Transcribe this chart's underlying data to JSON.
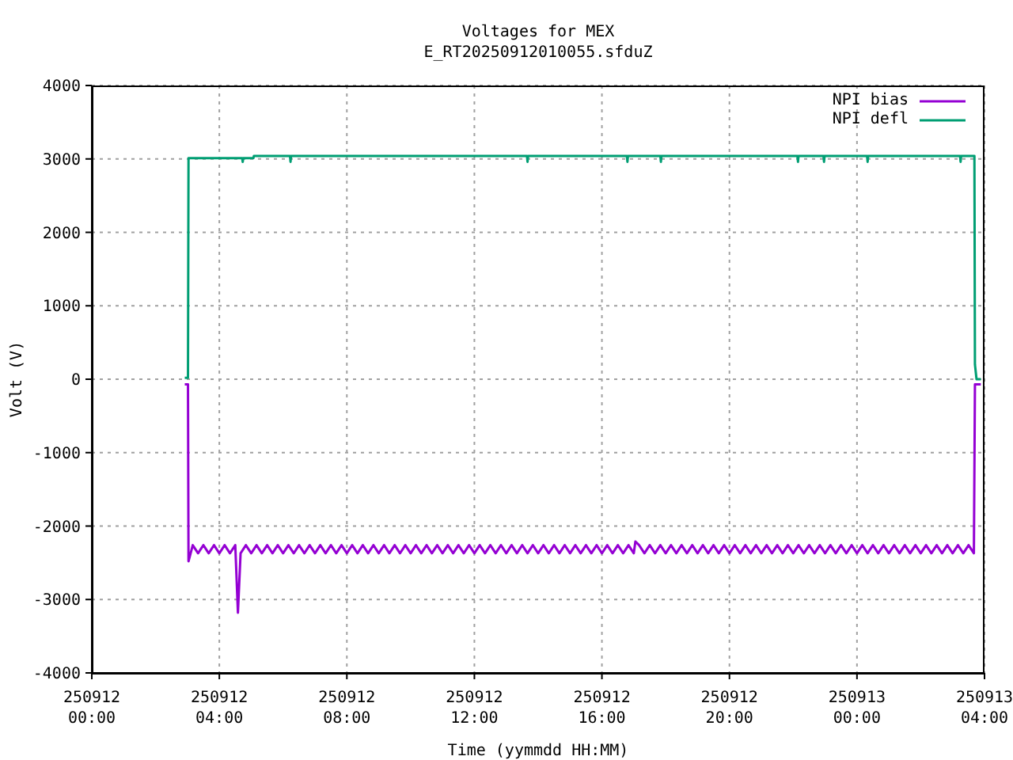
{
  "chart_data": {
    "type": "line",
    "title": "Voltages for MEX",
    "subtitle": "E_RT20250912010055.sfduZ",
    "xlabel": "Time (yymmdd HH:MM)",
    "ylabel": "Volt (V)",
    "xlim": [
      "2025-09-12T00:00",
      "2025-09-13T04:00"
    ],
    "xticks": [
      {
        "value": "2025-09-12T00:00",
        "label": "250912\n00:00"
      },
      {
        "value": "2025-09-12T04:00",
        "label": "250912\n04:00"
      },
      {
        "value": "2025-09-12T08:00",
        "label": "250912\n08:00"
      },
      {
        "value": "2025-09-12T12:00",
        "label": "250912\n12:00"
      },
      {
        "value": "2025-09-12T16:00",
        "label": "250912\n16:00"
      },
      {
        "value": "2025-09-12T20:00",
        "label": "250912\n20:00"
      },
      {
        "value": "2025-09-13T00:00",
        "label": "250913\n00:00"
      },
      {
        "value": "2025-09-13T04:00",
        "label": "250913\n04:00"
      }
    ],
    "ylim": [
      -4000,
      4000
    ],
    "yticks": [
      -4000,
      -3000,
      -2000,
      -1000,
      0,
      1000,
      2000,
      3000,
      4000
    ],
    "grid": true,
    "legend": "top right",
    "series": [
      {
        "name": "NPI bias",
        "color": "#9400d3",
        "x": [
          "2025-09-12T02:55",
          "2025-09-12T03:01",
          "2025-09-12T03:02",
          "2025-09-12T03:10",
          "2025-09-12T03:20",
          "2025-09-12T03:30",
          "2025-09-12T03:40",
          "2025-09-12T03:50",
          "2025-09-12T04:00",
          "2025-09-12T04:10",
          "2025-09-12T04:20",
          "2025-09-12T04:30",
          "2025-09-12T04:35",
          "2025-09-12T04:40",
          "2025-09-12T04:50",
          "2025-09-12T05:00",
          "2025-09-12T05:10",
          "2025-09-12T05:20",
          "2025-09-12T05:30",
          "2025-09-12T05:40",
          "2025-09-12T05:50",
          "2025-09-12T06:00",
          "2025-09-12T06:10",
          "2025-09-12T06:20",
          "2025-09-12T06:30",
          "2025-09-12T06:40",
          "2025-09-12T06:50",
          "2025-09-12T07:00",
          "2025-09-12T07:10",
          "2025-09-12T07:20",
          "2025-09-12T07:30",
          "2025-09-12T07:40",
          "2025-09-12T07:50",
          "2025-09-12T08:00",
          "2025-09-12T08:10",
          "2025-09-12T08:20",
          "2025-09-12T08:30",
          "2025-09-12T08:40",
          "2025-09-12T08:50",
          "2025-09-12T09:00",
          "2025-09-12T09:10",
          "2025-09-12T09:20",
          "2025-09-12T09:30",
          "2025-09-12T09:40",
          "2025-09-12T09:50",
          "2025-09-12T10:00",
          "2025-09-12T10:10",
          "2025-09-12T10:20",
          "2025-09-12T10:30",
          "2025-09-12T10:40",
          "2025-09-12T10:50",
          "2025-09-12T11:00",
          "2025-09-12T11:10",
          "2025-09-12T11:20",
          "2025-09-12T11:30",
          "2025-09-12T11:40",
          "2025-09-12T11:50",
          "2025-09-12T12:00",
          "2025-09-12T12:10",
          "2025-09-12T12:20",
          "2025-09-12T12:30",
          "2025-09-12T12:40",
          "2025-09-12T12:50",
          "2025-09-12T13:00",
          "2025-09-12T13:10",
          "2025-09-12T13:20",
          "2025-09-12T13:30",
          "2025-09-12T13:40",
          "2025-09-12T13:50",
          "2025-09-12T14:00",
          "2025-09-12T14:10",
          "2025-09-12T14:20",
          "2025-09-12T14:30",
          "2025-09-12T14:40",
          "2025-09-12T14:50",
          "2025-09-12T15:00",
          "2025-09-12T15:10",
          "2025-09-12T15:20",
          "2025-09-12T15:30",
          "2025-09-12T15:40",
          "2025-09-12T15:50",
          "2025-09-12T16:00",
          "2025-09-12T16:10",
          "2025-09-12T16:20",
          "2025-09-12T16:30",
          "2025-09-12T16:40",
          "2025-09-12T16:50",
          "2025-09-12T17:00",
          "2025-09-12T17:03",
          "2025-09-12T17:10",
          "2025-09-12T17:20",
          "2025-09-12T17:30",
          "2025-09-12T17:40",
          "2025-09-12T17:50",
          "2025-09-12T18:00",
          "2025-09-12T18:10",
          "2025-09-12T18:20",
          "2025-09-12T18:30",
          "2025-09-12T18:40",
          "2025-09-12T18:50",
          "2025-09-12T19:00",
          "2025-09-12T19:10",
          "2025-09-12T19:20",
          "2025-09-12T19:30",
          "2025-09-12T19:40",
          "2025-09-12T19:50",
          "2025-09-12T20:00",
          "2025-09-12T20:10",
          "2025-09-12T20:20",
          "2025-09-12T20:30",
          "2025-09-12T20:40",
          "2025-09-12T20:50",
          "2025-09-12T21:00",
          "2025-09-12T21:10",
          "2025-09-12T21:20",
          "2025-09-12T21:30",
          "2025-09-12T21:40",
          "2025-09-12T21:50",
          "2025-09-12T22:00",
          "2025-09-12T22:10",
          "2025-09-12T22:20",
          "2025-09-12T22:30",
          "2025-09-12T22:40",
          "2025-09-12T22:50",
          "2025-09-12T23:00",
          "2025-09-12T23:10",
          "2025-09-12T23:20",
          "2025-09-12T23:30",
          "2025-09-12T23:40",
          "2025-09-12T23:50",
          "2025-09-13T00:00",
          "2025-09-13T00:10",
          "2025-09-13T00:20",
          "2025-09-13T00:30",
          "2025-09-13T00:40",
          "2025-09-13T00:50",
          "2025-09-13T01:00",
          "2025-09-13T01:10",
          "2025-09-13T01:20",
          "2025-09-13T01:30",
          "2025-09-13T01:40",
          "2025-09-13T01:50",
          "2025-09-13T02:00",
          "2025-09-13T02:10",
          "2025-09-13T02:20",
          "2025-09-13T02:30",
          "2025-09-13T02:40",
          "2025-09-13T02:50",
          "2025-09-13T03:00",
          "2025-09-13T03:10",
          "2025-09-13T03:20",
          "2025-09-13T03:30",
          "2025-09-13T03:40",
          "2025-09-13T03:42",
          "2025-09-13T03:53"
        ],
        "values": [
          -70,
          -70,
          -2480,
          -2260,
          -2370,
          -2260,
          -2370,
          -2260,
          -2370,
          -2260,
          -2370,
          -2260,
          -3180,
          -2370,
          -2260,
          -2370,
          -2260,
          -2370,
          -2260,
          -2370,
          -2260,
          -2370,
          -2260,
          -2370,
          -2260,
          -2370,
          -2260,
          -2370,
          -2260,
          -2370,
          -2260,
          -2370,
          -2260,
          -2370,
          -2260,
          -2370,
          -2260,
          -2370,
          -2260,
          -2370,
          -2260,
          -2370,
          -2260,
          -2370,
          -2260,
          -2370,
          -2260,
          -2370,
          -2260,
          -2370,
          -2260,
          -2370,
          -2260,
          -2370,
          -2260,
          -2370,
          -2260,
          -2370,
          -2260,
          -2370,
          -2260,
          -2370,
          -2260,
          -2370,
          -2260,
          -2370,
          -2260,
          -2370,
          -2260,
          -2370,
          -2260,
          -2370,
          -2260,
          -2370,
          -2260,
          -2370,
          -2260,
          -2370,
          -2260,
          -2370,
          -2260,
          -2370,
          -2260,
          -2370,
          -2260,
          -2370,
          -2260,
          -2370,
          -2210,
          -2260,
          -2370,
          -2260,
          -2370,
          -2260,
          -2370,
          -2260,
          -2370,
          -2260,
          -2370,
          -2260,
          -2370,
          -2260,
          -2370,
          -2260,
          -2370,
          -2260,
          -2370,
          -2260,
          -2370,
          -2260,
          -2370,
          -2260,
          -2370,
          -2260,
          -2370,
          -2260,
          -2370,
          -2260,
          -2370,
          -2260,
          -2370,
          -2260,
          -2370,
          -2260,
          -2370,
          -2260,
          -2370,
          -2260,
          -2370,
          -2260,
          -2370,
          -2260,
          -2370,
          -2260,
          -2370,
          -2260,
          -2370,
          -2260,
          -2370,
          -2260,
          -2370,
          -2260,
          -2370,
          -2260,
          -2370,
          -2260,
          -2370,
          -2260,
          -2370,
          -2260,
          -2370,
          -2260,
          -2370,
          -70,
          -70
        ]
      },
      {
        "name": "NPI defl",
        "color": "#009e73",
        "x": [
          "2025-09-12T02:55",
          "2025-09-12T03:01",
          "2025-09-12T03:02",
          "2025-09-12T04:43",
          "2025-09-12T04:44",
          "2025-09-12T04:45",
          "2025-09-12T05:04",
          "2025-09-12T05:05",
          "2025-09-12T06:13",
          "2025-09-12T06:14",
          "2025-09-12T06:15",
          "2025-09-12T13:39",
          "2025-09-12T13:40",
          "2025-09-12T13:41",
          "2025-09-12T16:47",
          "2025-09-12T16:48",
          "2025-09-12T16:49",
          "2025-09-12T17:50",
          "2025-09-12T17:51",
          "2025-09-12T17:52",
          "2025-09-12T22:08",
          "2025-09-12T22:09",
          "2025-09-12T22:10",
          "2025-09-12T22:57",
          "2025-09-12T22:58",
          "2025-09-12T22:59",
          "2025-09-13T00:19",
          "2025-09-13T00:20",
          "2025-09-13T00:21",
          "2025-09-13T03:14",
          "2025-09-13T03:15",
          "2025-09-13T03:16",
          "2025-09-13T03:41",
          "2025-09-13T03:42",
          "2025-09-13T03:45",
          "2025-09-13T03:53"
        ],
        "values": [
          20,
          20,
          3010,
          3010,
          2960,
          3010,
          3010,
          3040,
          3040,
          2960,
          3040,
          3040,
          2960,
          3040,
          3040,
          2960,
          3040,
          3040,
          2960,
          3040,
          3040,
          2960,
          3040,
          3040,
          2960,
          3040,
          3040,
          2960,
          3040,
          3040,
          2960,
          3040,
          3040,
          200,
          0,
          0
        ]
      }
    ]
  }
}
